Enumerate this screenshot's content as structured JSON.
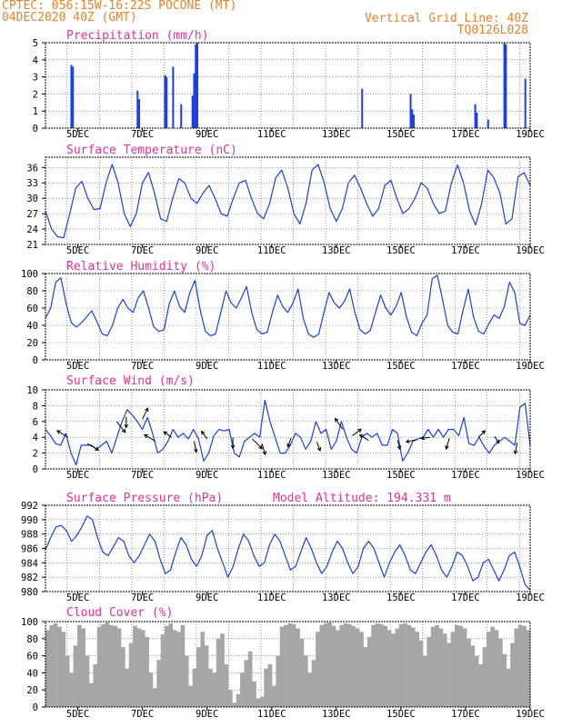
{
  "header": {
    "line1_left": "CPTEC:   056:15W-16:22S   POCONE (MT)",
    "line2_left": "04DEC2020 40Z (GMT)",
    "line1_right": "Vertical Grid Line: 40Z",
    "line2_right": "TQ0126L028"
  },
  "x_ticks": [
    "5DEC",
    "7DEC",
    "9DEC",
    "11DEC",
    "13DEC",
    "15DEC",
    "17DEC",
    "19DEC"
  ],
  "colors": {
    "header": "#e8822a",
    "title": "#e0329a",
    "series": "#1a3fe6",
    "cloud": "#a6a6a6",
    "grid": "#000000"
  },
  "chart_data": [
    {
      "type": "bar",
      "title": "Precipitation (mm/h)",
      "ylim": [
        0,
        5
      ],
      "yticks": [
        "0",
        "1",
        "2",
        "3",
        "4",
        "5"
      ],
      "x_range_days": [
        4.0,
        19.0
      ],
      "x": [
        4.8,
        4.85,
        6.85,
        6.9,
        7.7,
        7.75,
        7.95,
        8.2,
        8.55,
        8.6,
        8.65,
        8.7,
        13.8,
        15.3,
        15.35,
        15.4,
        17.3,
        17.35,
        17.7,
        18.2,
        18.25,
        18.85
      ],
      "values": [
        3.7,
        3.6,
        2.2,
        1.7,
        3.1,
        3.0,
        3.6,
        1.4,
        1.9,
        3.2,
        4.9,
        5.0,
        2.3,
        2.0,
        1.1,
        0.8,
        1.4,
        0.9,
        0.5,
        5.0,
        4.9,
        2.9
      ]
    },
    {
      "type": "line",
      "title": "Surface Temperature (nC)",
      "ylim": [
        21,
        38
      ],
      "yticks": [
        "21",
        "24",
        "27",
        "30",
        "33",
        "36"
      ],
      "x_range_days": [
        4.0,
        19.0
      ],
      "values": [
        27.5,
        24,
        22.5,
        22.3,
        27,
        32,
        33.3,
        30,
        27.8,
        28,
        33,
        36.6,
        33,
        27,
        24.5,
        27,
        33,
        35,
        31,
        26,
        25.5,
        30,
        33.8,
        33,
        30,
        29,
        31,
        32.5,
        30,
        27,
        26.5,
        30,
        33,
        33.5,
        30,
        27,
        26,
        29,
        34,
        35.5,
        32,
        27,
        25,
        29,
        35.5,
        36.6,
        33,
        28,
        25.5,
        28,
        33,
        34.5,
        32,
        29,
        26.5,
        28,
        32.5,
        33.5,
        30,
        27,
        28,
        30,
        33,
        32,
        29,
        27,
        27.5,
        33,
        36.5,
        33,
        27.5,
        24.8,
        29,
        35.5,
        34,
        31,
        25,
        26,
        34.2,
        35,
        32.5
      ]
    },
    {
      "type": "line",
      "title": "Relative Humidity (%)",
      "ylim": [
        0,
        100
      ],
      "yticks": [
        "0",
        "20",
        "40",
        "60",
        "80",
        "100"
      ],
      "x_range_days": [
        4.0,
        19.0
      ],
      "values": [
        48,
        60,
        90,
        95,
        65,
        43,
        38,
        43,
        50,
        57,
        44,
        30,
        28,
        40,
        60,
        70,
        60,
        55,
        72,
        80,
        60,
        38,
        33,
        35,
        65,
        80,
        62,
        55,
        78,
        92,
        58,
        33,
        28,
        30,
        55,
        80,
        66,
        60,
        72,
        85,
        55,
        35,
        30,
        32,
        55,
        75,
        62,
        55,
        66,
        82,
        48,
        30,
        26,
        30,
        55,
        78,
        66,
        60,
        68,
        82,
        55,
        35,
        30,
        34,
        55,
        75,
        60,
        52,
        62,
        78,
        50,
        32,
        28,
        42,
        52,
        94,
        98,
        70,
        40,
        32,
        30,
        58,
        82,
        50,
        33,
        30,
        42,
        52,
        48,
        62,
        90,
        78,
        42,
        40,
        52
      ]
    },
    {
      "type": "line",
      "title": "Surface Wind (m/s)",
      "ylim": [
        0,
        10
      ],
      "yticks": [
        "0",
        "2",
        "4",
        "6",
        "8",
        "10"
      ],
      "x_range_days": [
        4.0,
        19.0
      ],
      "values": [
        5,
        4.2,
        3.2,
        3,
        4.5,
        2,
        0.5,
        3,
        3,
        3,
        2.5,
        3,
        3.5,
        2,
        4,
        6,
        7.5,
        6.8,
        6,
        5,
        6.5,
        4.5,
        2,
        2.5,
        3.5,
        5,
        4,
        4.5,
        3.8,
        5,
        3.8,
        1,
        2,
        4.2,
        5,
        4.8,
        5,
        2,
        1.5,
        3.5,
        4,
        4.5,
        4,
        8.7,
        6,
        4,
        2,
        2,
        3,
        4.5,
        4,
        2.5,
        3.5,
        6,
        4.5,
        5,
        2.5,
        3.5,
        6,
        4,
        2.5,
        2,
        4,
        4.5,
        4,
        4.5,
        3,
        3,
        5,
        4.5,
        1,
        2,
        3.5,
        3.8,
        4,
        5,
        4,
        5,
        4,
        5,
        5,
        4.2,
        6.5,
        3.2,
        3,
        4,
        2.8,
        2,
        3,
        3.5,
        4,
        3.5,
        3,
        7.8,
        8.3,
        3
      ]
    },
    {
      "type": "line",
      "title": "Surface Pressure (hPa)",
      "subtitle": "Model Altitude: 194.331 m",
      "ylim": [
        980,
        992
      ],
      "yticks": [
        "980",
        "982",
        "984",
        "986",
        "988",
        "990",
        "992"
      ],
      "x_range_days": [
        4.0,
        19.0
      ],
      "values": [
        985.8,
        987.5,
        989,
        989.2,
        988.5,
        987,
        987.8,
        989,
        990.5,
        990,
        987.5,
        985.5,
        985,
        986.2,
        987.5,
        987,
        985,
        984,
        985,
        986.5,
        988,
        987,
        984.5,
        982.5,
        983,
        985.5,
        987.5,
        986.5,
        984.5,
        983.5,
        985,
        987.8,
        988.5,
        986,
        984,
        982,
        983.5,
        986,
        988,
        987,
        985,
        983.5,
        984,
        986.5,
        988,
        987,
        985,
        983,
        983.5,
        985.5,
        987.5,
        986,
        984,
        982.5,
        983.5,
        985.5,
        987,
        986,
        984,
        982.5,
        983.5,
        986,
        987,
        986,
        984,
        982,
        984,
        985.5,
        986.5,
        985,
        983,
        982.5,
        984,
        985.5,
        986.5,
        985,
        983,
        982,
        983.5,
        985.5,
        985,
        983.5,
        981.5,
        982,
        984,
        984.5,
        983,
        981.5,
        983,
        985,
        985.5,
        983.5,
        981,
        980.2
      ]
    },
    {
      "type": "area",
      "title": "Cloud Cover (%)",
      "ylim": [
        0,
        100
      ],
      "yticks": [
        "0",
        "20",
        "40",
        "60",
        "80",
        "100"
      ],
      "x_range_days": [
        4.0,
        19.0
      ],
      "values": [
        90,
        96,
        98,
        94,
        88,
        60,
        40,
        72,
        96,
        92,
        60,
        28,
        50,
        94,
        97,
        99,
        96,
        95,
        92,
        70,
        45,
        75,
        95,
        92,
        90,
        82,
        40,
        22,
        55,
        85,
        95,
        98,
        90,
        88,
        96,
        60,
        25,
        45,
        70,
        88,
        72,
        45,
        40,
        80,
        86,
        50,
        20,
        5,
        15,
        40,
        55,
        65,
        30,
        10,
        12,
        45,
        50,
        25,
        60,
        94,
        96,
        98,
        97,
        92,
        80,
        60,
        40,
        55,
        88,
        96,
        98,
        99,
        95,
        90,
        96,
        98,
        97,
        95,
        92,
        88,
        70,
        82,
        96,
        98,
        97,
        95,
        90,
        86,
        92,
        97,
        98,
        96,
        93,
        88,
        78,
        60,
        82,
        94,
        96,
        92,
        86,
        75,
        88,
        96,
        95,
        92,
        80,
        72,
        60,
        50,
        70,
        88,
        94,
        90,
        80,
        62,
        45,
        75,
        92,
        96,
        95,
        90
      ]
    }
  ]
}
